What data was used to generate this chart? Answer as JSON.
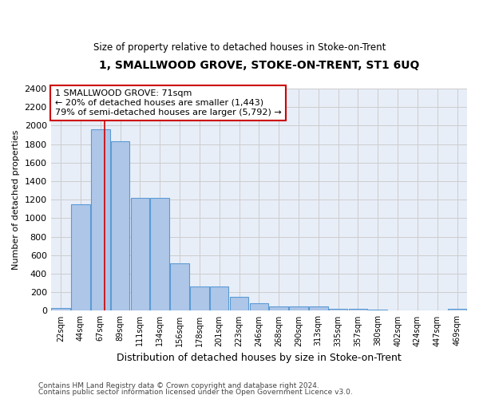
{
  "title": "1, SMALLWOOD GROVE, STOKE-ON-TRENT, ST1 6UQ",
  "subtitle": "Size of property relative to detached houses in Stoke-on-Trent",
  "xlabel": "Distribution of detached houses by size in Stoke-on-Trent",
  "ylabel": "Number of detached properties",
  "categories": [
    "22sqm",
    "44sqm",
    "67sqm",
    "89sqm",
    "111sqm",
    "134sqm",
    "156sqm",
    "178sqm",
    "201sqm",
    "223sqm",
    "246sqm",
    "268sqm",
    "290sqm",
    "313sqm",
    "335sqm",
    "357sqm",
    "380sqm",
    "402sqm",
    "424sqm",
    "447sqm",
    "469sqm"
  ],
  "values": [
    30,
    1150,
    1960,
    1830,
    1220,
    1220,
    510,
    265,
    265,
    150,
    80,
    50,
    45,
    45,
    20,
    20,
    15,
    0,
    0,
    0,
    20
  ],
  "bar_color": "#aec6e8",
  "bar_edge_color": "#5b9bd5",
  "annotation_line1": "1 SMALLWOOD GROVE: 71sqm",
  "annotation_line2": "← 20% of detached houses are smaller (1,443)",
  "annotation_line3": "79% of semi-detached houses are larger (5,792) →",
  "annotation_box_color": "#ffffff",
  "annotation_box_edge_color": "#cc0000",
  "vline_color": "#cc0000",
  "ylim": [
    0,
    2400
  ],
  "yticks": [
    0,
    200,
    400,
    600,
    800,
    1000,
    1200,
    1400,
    1600,
    1800,
    2000,
    2200,
    2400
  ],
  "grid_color": "#cccccc",
  "background_color": "#e8eef8",
  "footer_line1": "Contains HM Land Registry data © Crown copyright and database right 2024.",
  "footer_line2": "Contains public sector information licensed under the Open Government Licence v3.0."
}
